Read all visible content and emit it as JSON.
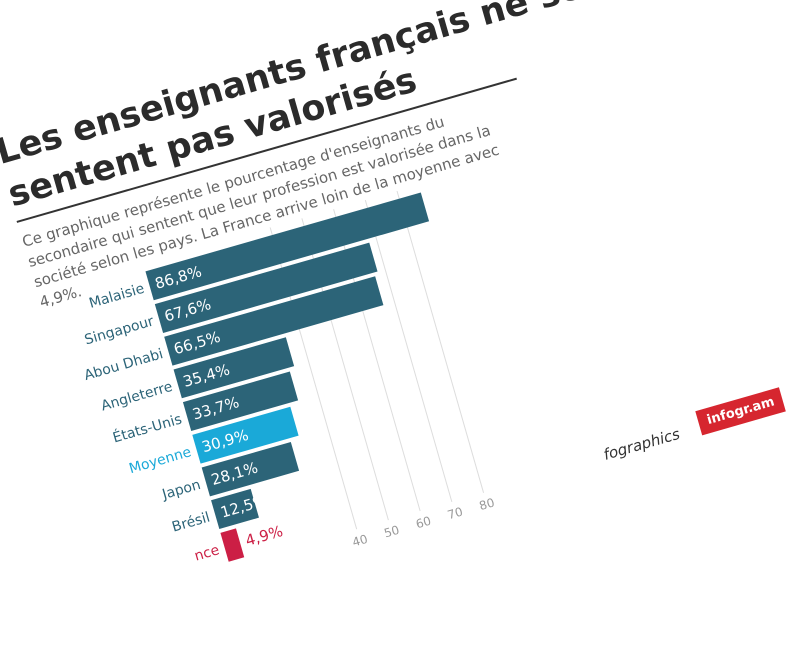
{
  "header": {
    "title": "Les enseignants français ne se sentent pas valorisés",
    "description": "Ce graphique représente le pourcentage d'enseignants du secondaire qui sentent que leur profession est valorisée dans la société selon les pays. La France arrive loin de la moyenne avec 4,9%."
  },
  "colors": {
    "bar": "#2c6478",
    "average": "#1aa9d8",
    "france": "#cc1f45",
    "grid": "#dddddd"
  },
  "footer": {
    "text": "fographics",
    "badge": "infogr.am"
  },
  "chart_data": {
    "type": "bar",
    "orientation": "horizontal",
    "title": "",
    "xlabel": "",
    "ylabel": "",
    "xlim": [
      0,
      80
    ],
    "grid": true,
    "ticks": [
      "40",
      "50",
      "60",
      "70",
      "80"
    ],
    "categories": [
      "Malaisie",
      "Singapour",
      "Abou Dhabi",
      "Angleterre",
      "États-Unis",
      "Moyenne",
      "Japon",
      "Brésil",
      "France"
    ],
    "values": [
      86.8,
      67.6,
      66.5,
      35.4,
      33.7,
      30.9,
      28.1,
      12.5,
      4.9
    ],
    "value_labels": [
      "86,8%",
      "67,6%",
      "66,5%",
      "35,4%",
      "33,7%",
      "30,9%",
      "28,1%",
      "12,5%",
      "4,9%"
    ],
    "category_labels": [
      "Malaisie",
      "Singapour",
      "Abou Dhabi",
      "Angleterre",
      "États-Unis",
      "Moyenne",
      "Japon",
      "Brésil",
      "nce"
    ]
  }
}
